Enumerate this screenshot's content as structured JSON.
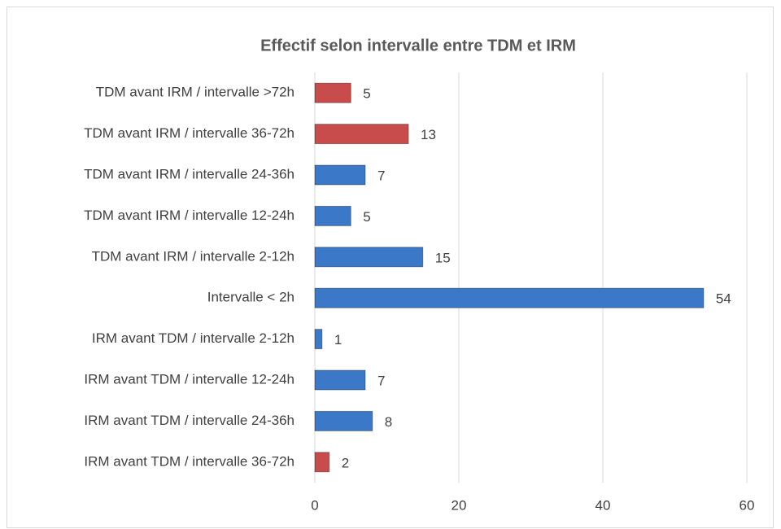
{
  "chart_data": {
    "type": "bar",
    "orientation": "horizontal",
    "title": "Effectif selon intervalle entre TDM et IRM",
    "categories": [
      "TDM avant IRM / intervalle >72h",
      "TDM avant IRM / intervalle 36-72h",
      "TDM avant IRM / intervalle 24-36h",
      "TDM avant IRM / intervalle 12-24h",
      "TDM avant IRM / intervalle 2-12h",
      "Intervalle < 2h",
      "IRM avant TDM / intervalle 2-12h",
      "IRM avant TDM / intervalle 12-24h",
      "IRM avant TDM / intervalle 24-36h",
      "IRM avant TDM / intervalle 36-72h"
    ],
    "values": [
      5,
      13,
      7,
      5,
      15,
      54,
      1,
      7,
      8,
      2
    ],
    "colors": [
      "#c94c4c",
      "#c94c4c",
      "#3b78c8",
      "#3b78c8",
      "#3b78c8",
      "#3b78c8",
      "#3b78c8",
      "#3b78c8",
      "#3b78c8",
      "#c94c4c"
    ],
    "xlim": [
      0,
      60
    ],
    "xticks": [
      0,
      20,
      40,
      60
    ],
    "grid": true
  }
}
